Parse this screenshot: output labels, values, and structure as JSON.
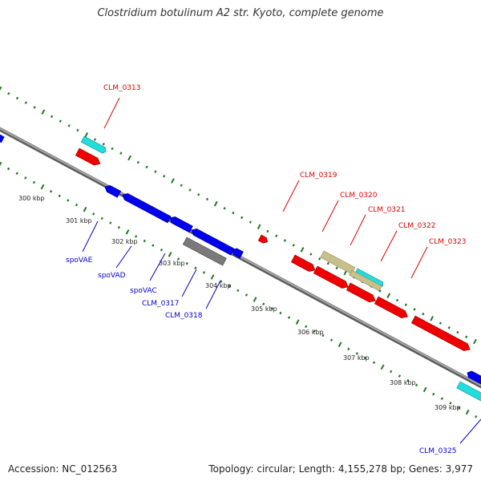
{
  "title": "Clostridium botulinum A2 str. Kyoto, complete genome",
  "footer": {
    "accession": "Accession: NC_012563",
    "summary": "Topology: circular; Length: 4,155,278 bp; Genes: 3,977"
  },
  "colors": {
    "backbone": "#888888",
    "ticks": "#1e7a1e",
    "forward_label": "#e00000",
    "reverse_label": "#0000cc",
    "red": "#ee0000",
    "blue": "#0000ee",
    "cyan": "#22dddd",
    "olive": "#c8c08a",
    "gray": "#7a7a7a"
  },
  "scale_labels": [
    "300 kbp",
    "301 kbp",
    "302 kbp",
    "303 kbp",
    "304 kbp",
    "305 kbp",
    "306 kbp",
    "307 kbp",
    "308 kbp",
    "309 kbp"
  ],
  "forward_labels": [
    "CLM_0313",
    "CLM_0319",
    "CLM_0320",
    "CLM_0321",
    "CLM_0322",
    "CLM_0323"
  ],
  "reverse_labels": [
    "spoVAE",
    "spoVAD",
    "spoVAC",
    "CLM_0317",
    "CLM_0318",
    "CLM_0325"
  ]
}
